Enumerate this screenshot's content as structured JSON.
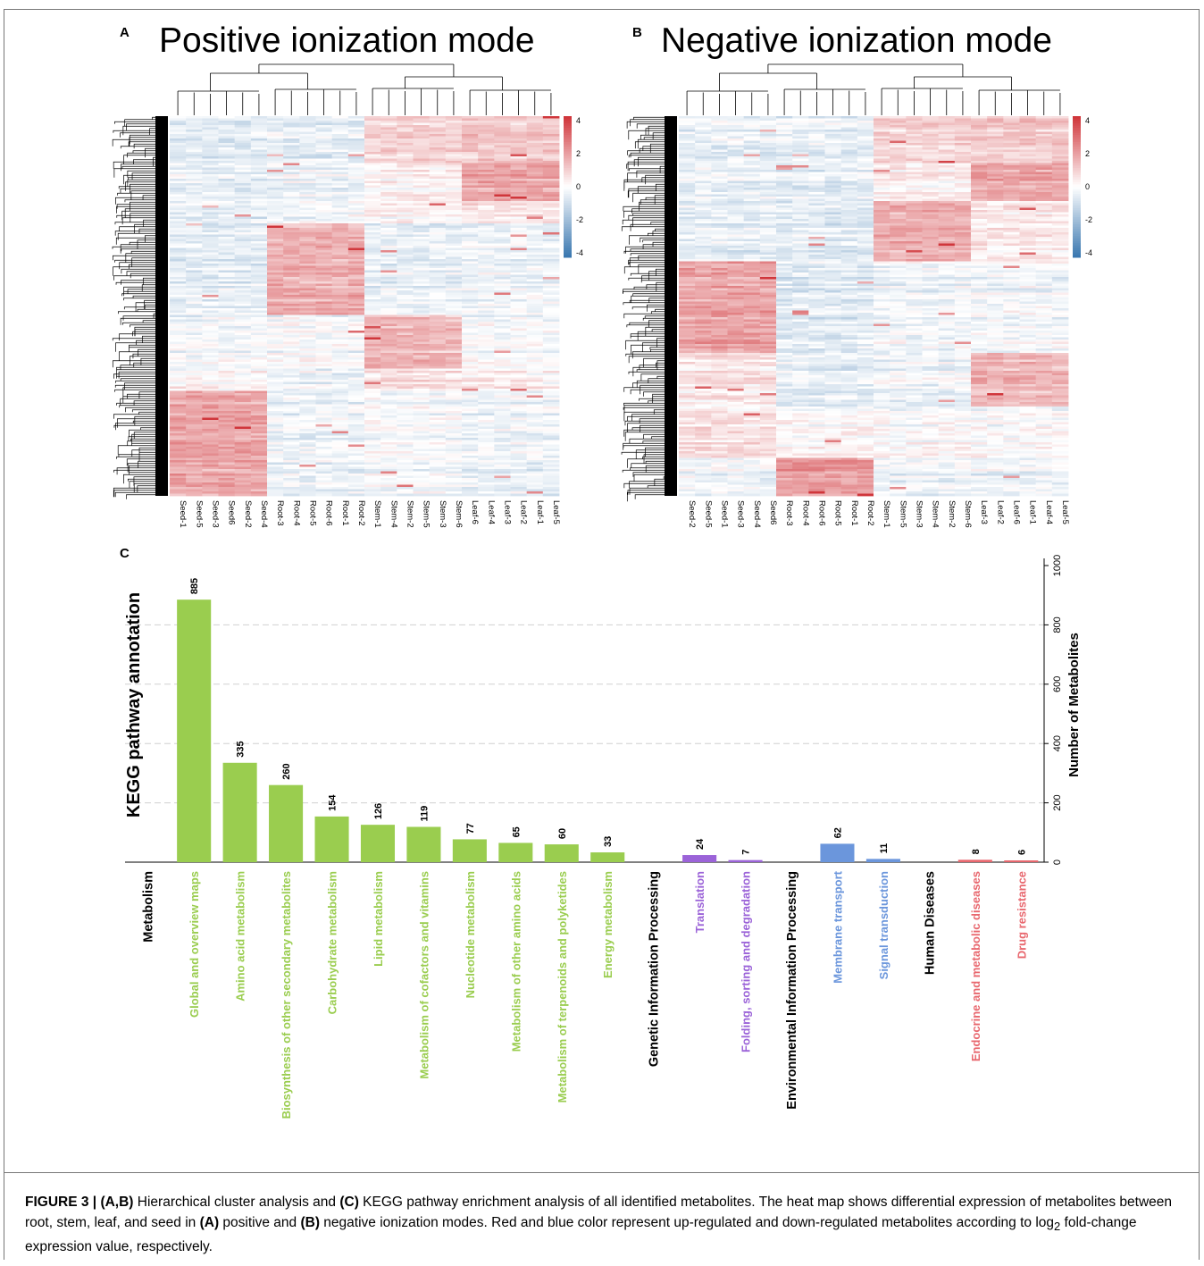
{
  "figure": {
    "label": "FIGURE 3",
    "caption_parts": {
      "label": "FIGURE 3 | ",
      "bold1": "(A,B)",
      "t1": " Hierarchical cluster analysis and ",
      "bold2": "(C)",
      "t2": " KEGG pathway enrichment analysis of all identified metabolites. The heat map shows differential expression of metabolites between root, stem, leaf, and seed in ",
      "bold3": "(A)",
      "t3": " positive and ",
      "bold4": "(B)",
      "t4": " negative ionization modes. Red and blue color represent up-regulated and down-regulated metabolites according to log",
      "sub": "2",
      "t5": " fold-change expression value, respectively."
    }
  },
  "panels": {
    "a": {
      "letter": "A",
      "title": "Positive ionization mode"
    },
    "b": {
      "letter": "B",
      "title": "Negative ionization mode"
    },
    "c": {
      "letter": "C"
    }
  },
  "colors": {
    "up": "#d0363b",
    "down": "#3b78b0",
    "neutral": "#ffffff",
    "metabolism": "#9acd4f",
    "genetic": "#9b63d8",
    "environmental": "#6b96dc",
    "human_disease": "#e8676e"
  },
  "chart_data": [
    {
      "type": "heatmap",
      "panel": "A",
      "title": "Positive ionization mode",
      "columns": [
        "Seed-1",
        "Seed-5",
        "Seed-3",
        "Seed6",
        "Seed-2",
        "Seed-4",
        "Root-3",
        "Root-4",
        "Root-5",
        "Root-6",
        "Root-1",
        "Root-2",
        "Stem-1",
        "Stem-4",
        "Stem-2",
        "Stem-5",
        "Stem-3",
        "Stem-6",
        "Leaf-6",
        "Leaf-4",
        "Leaf-3",
        "Leaf-2",
        "Leaf-1",
        "Leaf-5"
      ],
      "color_scale": {
        "min": -4,
        "max": 4,
        "ticks": [
          "4",
          "2",
          "0",
          "-2",
          "-4"
        ]
      },
      "row_dendrogram": true,
      "column_dendrogram": true
    },
    {
      "type": "heatmap",
      "panel": "B",
      "title": "Negative ionization mode",
      "columns": [
        "Seed-2",
        "Seed-5",
        "Seed-1",
        "Seed-3",
        "Seed-4",
        "Seed6",
        "Root-3",
        "Root-4",
        "Root-6",
        "Root-5",
        "Root-1",
        "Root-2",
        "Stem-1",
        "Stem-5",
        "Stem-3",
        "Stem-4",
        "Stem-2",
        "Stem-6",
        "Leaf-3",
        "Leaf-2",
        "Leaf-6",
        "Leaf-1",
        "Leaf-4",
        "Leaf-5"
      ],
      "color_scale": {
        "min": -4,
        "max": 4,
        "ticks": [
          "4",
          "2",
          "0",
          "-2",
          "-4"
        ]
      },
      "row_dendrogram": true,
      "column_dendrogram": true
    },
    {
      "type": "bar",
      "panel": "C",
      "ylabel_left": "KEGG pathway annotation",
      "ylabel_right": "Number of Metabolites",
      "ylim": [
        0,
        1000
      ],
      "yticks": [
        "0",
        "200",
        "400",
        "600",
        "800",
        "1000"
      ],
      "grid": true,
      "categories": [
        {
          "label": "Metabolism",
          "header": true,
          "group": "metabolism"
        },
        {
          "label": "Global and overview maps",
          "value": 885,
          "group": "metabolism"
        },
        {
          "label": "Amino acid metabolism",
          "value": 335,
          "group": "metabolism"
        },
        {
          "label": "Biosynthesis of other secondary metabolites",
          "value": 260,
          "group": "metabolism"
        },
        {
          "label": "Carbohydrate metabolism",
          "value": 154,
          "group": "metabolism"
        },
        {
          "label": "Lipid metabolism",
          "value": 126,
          "group": "metabolism"
        },
        {
          "label": "Metabolism of cofactors and vitamins",
          "value": 119,
          "group": "metabolism"
        },
        {
          "label": "Nucleotide metabolism",
          "value": 77,
          "group": "metabolism"
        },
        {
          "label": "Metabolism of other amino acids",
          "value": 65,
          "group": "metabolism"
        },
        {
          "label": "Metabolism of terpenoids and polyketides",
          "value": 60,
          "group": "metabolism"
        },
        {
          "label": "Energy metabolism",
          "value": 33,
          "group": "metabolism"
        },
        {
          "label": "Genetic Information Processing",
          "header": true,
          "group": "genetic"
        },
        {
          "label": "Translation",
          "value": 24,
          "group": "genetic"
        },
        {
          "label": "Folding, sorting and degradation",
          "value": 7,
          "group": "genetic"
        },
        {
          "label": "Environmental Information Processing",
          "header": true,
          "group": "environmental"
        },
        {
          "label": "Membrane transport",
          "value": 62,
          "group": "environmental"
        },
        {
          "label": "Signal transduction",
          "value": 11,
          "group": "environmental"
        },
        {
          "label": "Human Diseases",
          "header": true,
          "group": "human_disease"
        },
        {
          "label": "Endocrine and metabolic diseases",
          "value": 8,
          "group": "human_disease"
        },
        {
          "label": "Drug resistance",
          "value": 6,
          "group": "human_disease"
        }
      ]
    }
  ]
}
